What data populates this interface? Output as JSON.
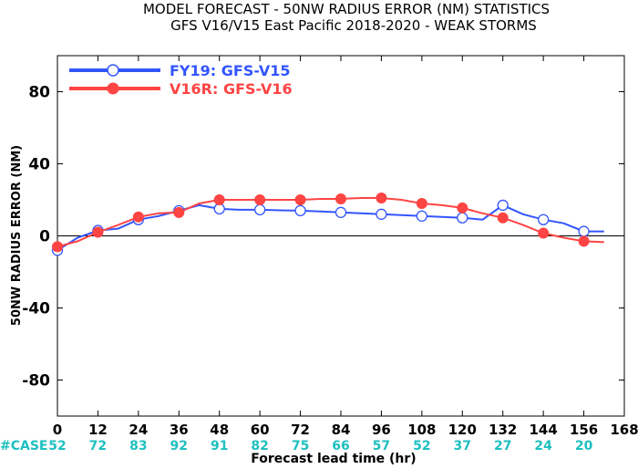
{
  "chart_data": {
    "type": "line",
    "title_line1": "MODEL FORECAST - 50NW RADIUS ERROR (NM) STATISTICS",
    "title_line2": "GFS V16/V15 East Pacific 2018-2020 - WEAK STORMS",
    "xlabel": "Forecast lead time (hr)",
    "ylabel": "50NW RADIUS ERROR (NM)",
    "xlim": [
      0,
      168
    ],
    "ylim": [
      -100,
      100
    ],
    "x_ticks": [
      0,
      12,
      24,
      36,
      48,
      60,
      72,
      84,
      96,
      108,
      120,
      132,
      144,
      156,
      168
    ],
    "x_tick_labels": [
      "0",
      "12",
      "24",
      "36",
      "48",
      "60",
      "72",
      "84",
      "96",
      "108",
      "120",
      "132",
      "144",
      "156",
      "168"
    ],
    "y_ticks": [
      -80,
      -40,
      0,
      40,
      80
    ],
    "y_tick_labels": [
      "-80",
      "-40",
      "0",
      "40",
      "80"
    ],
    "zero_line": true,
    "legend_placement": "top-left",
    "case_label": "#CASE",
    "case_counts": [
      {
        "x": 0,
        "label": "52"
      },
      {
        "x": 12,
        "label": "72"
      },
      {
        "x": 24,
        "label": "83"
      },
      {
        "x": 36,
        "label": "92"
      },
      {
        "x": 48,
        "label": "91"
      },
      {
        "x": 60,
        "label": "82"
      },
      {
        "x": 72,
        "label": "75"
      },
      {
        "x": 84,
        "label": "66"
      },
      {
        "x": 96,
        "label": "57"
      },
      {
        "x": 108,
        "label": "52"
      },
      {
        "x": 120,
        "label": "37"
      },
      {
        "x": 132,
        "label": "27"
      },
      {
        "x": 144,
        "label": "24"
      },
      {
        "x": 156,
        "label": "20"
      }
    ],
    "series": [
      {
        "name": "FY19: GFS-V15",
        "color": "#3355ff",
        "marker": "open-circle",
        "x": [
          0,
          6,
          12,
          18,
          24,
          30,
          36,
          42,
          48,
          54,
          60,
          66,
          72,
          78,
          84,
          90,
          96,
          102,
          108,
          114,
          120,
          126,
          132,
          138,
          144,
          150,
          156,
          162
        ],
        "y": [
          -8,
          -1,
          3,
          4,
          9,
          11,
          14,
          17,
          15,
          14.5,
          14.5,
          14.2,
          14,
          13.5,
          13,
          12.5,
          12,
          11.5,
          11,
          10.5,
          10,
          9,
          17,
          12,
          9,
          7,
          2.5,
          2.5
        ],
        "marker_x": [
          0,
          12,
          24,
          36,
          48,
          60,
          72,
          84,
          96,
          108,
          120,
          132,
          144,
          156
        ],
        "marker_y": [
          -8,
          3,
          9,
          14,
          15,
          14.5,
          14,
          13,
          12,
          11,
          10,
          17,
          9,
          2.5
        ]
      },
      {
        "name": "V16R: GFS-V16",
        "color": "#ff4444",
        "marker": "filled-circle",
        "x": [
          0,
          6,
          12,
          18,
          24,
          30,
          36,
          42,
          48,
          54,
          60,
          66,
          72,
          78,
          84,
          90,
          96,
          102,
          108,
          114,
          120,
          126,
          132,
          138,
          144,
          150,
          156,
          162
        ],
        "y": [
          -6,
          -3,
          2,
          6,
          10.5,
          12.5,
          13,
          18,
          20,
          20,
          20,
          20,
          20,
          20.5,
          20.5,
          21,
          21,
          20,
          18,
          17,
          15.5,
          12.5,
          10,
          6,
          1.5,
          -1,
          -3,
          -3.5
        ],
        "marker_x": [
          0,
          12,
          24,
          36,
          48,
          60,
          72,
          84,
          96,
          108,
          120,
          132,
          144,
          156
        ],
        "marker_y": [
          -6,
          2,
          10.5,
          13,
          20,
          20,
          20,
          20.5,
          21,
          18,
          15.5,
          10,
          1.5,
          -3
        ]
      }
    ]
  }
}
